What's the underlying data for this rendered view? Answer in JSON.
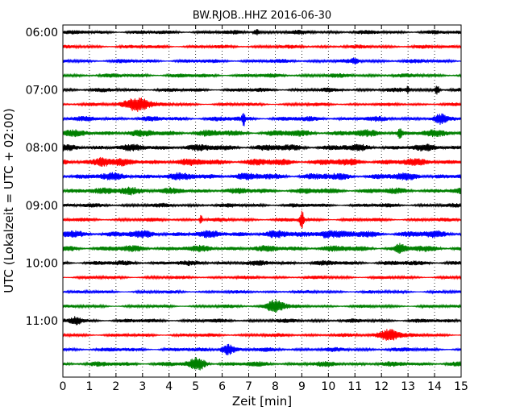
{
  "chart_data": {
    "type": "line",
    "title": "BW.RJOB..HHZ 2016-06-30",
    "xlabel": "Zeit  [min]",
    "ylabel": "UTC (Lokalzeit = UTC + 02:00)",
    "xlim": [
      0,
      15
    ],
    "x_ticks": [
      "0",
      "1",
      "2",
      "3",
      "4",
      "5",
      "6",
      "7",
      "8",
      "9",
      "10",
      "11",
      "12",
      "13",
      "14",
      "15"
    ],
    "y_ticks": [
      "06:00",
      "07:00",
      "08:00",
      "09:00",
      "10:00",
      "11:00"
    ],
    "grid": "vertical dotted",
    "trace_colors": [
      "#000000",
      "#ff0000",
      "#0000ff",
      "#008000"
    ],
    "traces": [
      {
        "hour": "06:00",
        "amp": 0.45,
        "events": [
          [
            7.3,
            0.8,
            0.12
          ]
        ]
      },
      {
        "hour": "06:15",
        "amp": 0.4,
        "events": []
      },
      {
        "hour": "06:30",
        "amp": 0.45,
        "events": [
          [
            11.0,
            0.6,
            0.1
          ]
        ]
      },
      {
        "hour": "06:45",
        "amp": 0.45,
        "events": []
      },
      {
        "hour": "07:00",
        "amp": 0.45,
        "events": [
          [
            13.0,
            0.8,
            0.06
          ],
          [
            14.1,
            1.0,
            0.1
          ]
        ]
      },
      {
        "hour": "07:15",
        "amp": 0.35,
        "events": [
          [
            2.8,
            1.8,
            0.5
          ]
        ]
      },
      {
        "hour": "07:30",
        "amp": 0.55,
        "events": [
          [
            6.8,
            1.9,
            0.05
          ],
          [
            14.2,
            0.8,
            0.2
          ]
        ]
      },
      {
        "hour": "07:45",
        "amp": 0.75,
        "events": [
          [
            12.7,
            1.1,
            0.08
          ]
        ]
      },
      {
        "hour": "08:00",
        "amp": 0.75,
        "events": []
      },
      {
        "hour": "08:15",
        "amp": 0.8,
        "events": [
          [
            1.5,
            0.9,
            0.3
          ]
        ]
      },
      {
        "hour": "08:30",
        "amp": 0.8,
        "events": []
      },
      {
        "hour": "08:45",
        "amp": 0.65,
        "events": [
          [
            2.5,
            0.8,
            0.4
          ]
        ]
      },
      {
        "hour": "09:00",
        "amp": 0.45,
        "events": []
      },
      {
        "hour": "09:15",
        "amp": 0.4,
        "events": [
          [
            5.2,
            1.2,
            0.05
          ],
          [
            9.0,
            2.2,
            0.08
          ]
        ]
      },
      {
        "hour": "09:30",
        "amp": 0.8,
        "events": [
          [
            9.9,
            0.9,
            0.3
          ]
        ]
      },
      {
        "hour": "09:45",
        "amp": 0.7,
        "events": [
          [
            12.7,
            0.8,
            0.15
          ]
        ]
      },
      {
        "hour": "10:00",
        "amp": 0.55,
        "events": []
      },
      {
        "hour": "10:15",
        "amp": 0.35,
        "events": []
      },
      {
        "hour": "10:30",
        "amp": 0.35,
        "events": []
      },
      {
        "hour": "10:45",
        "amp": 0.35,
        "events": [
          [
            8.0,
            1.6,
            0.35
          ]
        ]
      },
      {
        "hour": "11:00",
        "amp": 0.45,
        "events": [
          [
            0.5,
            0.9,
            0.2
          ]
        ]
      },
      {
        "hour": "11:15",
        "amp": 0.4,
        "events": [
          [
            12.3,
            1.5,
            0.4
          ]
        ]
      },
      {
        "hour": "11:30",
        "amp": 0.45,
        "events": [
          [
            6.2,
            1.3,
            0.25
          ]
        ]
      },
      {
        "hour": "11:45",
        "amp": 0.55,
        "events": [
          [
            5.1,
            1.4,
            0.3
          ]
        ]
      }
    ]
  }
}
